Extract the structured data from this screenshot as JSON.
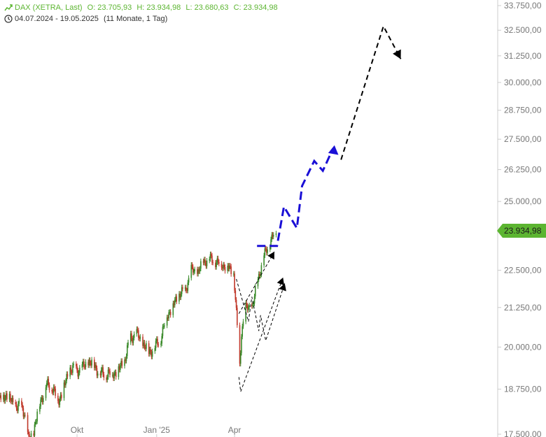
{
  "header": {
    "instrument": "DAX (XETRA, Last)",
    "open": "O: 23.705,93",
    "high": "H: 23.934,98",
    "low": "L: 23.680,63",
    "close": "C: 23.934,98",
    "range": "04.07.2024 - 19.05.2025",
    "period": "(11 Monate, 1 Tag)",
    "icons": [
      "trend-up-icon",
      "clock-icon"
    ]
  },
  "last_price_label": "23.934,98",
  "colors": {
    "header_green": "#5cb531",
    "price_tag": "#5cb531",
    "candle_up": "#3a8a2a",
    "candle_down": "#c0392b",
    "forecast_blue": "#1a0fd6",
    "forecast_black": "#000000",
    "axis": "#cccccc",
    "axis_text": "#777777"
  },
  "chart_data": {
    "type": "line",
    "title": "DAX (XETRA, Last)",
    "y_tick_labels": [
      "17.500,00",
      "18.750,00",
      "20.000,00",
      "21.250,00",
      "22.500,00",
      "25.000,00",
      "26.250,00",
      "27.500,00",
      "28.750,00",
      "30.000,00",
      "31.250,00",
      "32.500,00",
      "33.750,00"
    ],
    "y_ticks": [
      17500,
      18750,
      20000,
      21250,
      22500,
      25000,
      26250,
      27500,
      28750,
      30000,
      31250,
      32500,
      33750
    ],
    "ylim": [
      17500,
      33750
    ],
    "y_scale": "log",
    "x_tick_labels": [
      "Okt",
      "Jan '25",
      "Apr"
    ],
    "x_ticks": [
      "2024-10-01",
      "2025-01-01",
      "2025-04-01"
    ],
    "xlim": [
      "2024-07-04",
      "2026-01-30"
    ],
    "grid": false,
    "series": [
      {
        "kind": "candlestick-trace",
        "points": [
          [
            "2024-07-04",
            18450
          ],
          [
            "2024-07-11",
            18600
          ],
          [
            "2024-07-18",
            18350
          ],
          [
            "2024-07-25",
            18250
          ],
          [
            "2024-08-01",
            18150
          ],
          [
            "2024-08-06",
            17300
          ],
          [
            "2024-08-12",
            17600
          ],
          [
            "2024-08-19",
            18350
          ],
          [
            "2024-08-26",
            18850
          ],
          [
            "2024-09-02",
            18850
          ],
          [
            "2024-09-09",
            18400
          ],
          [
            "2024-09-16",
            18800
          ],
          [
            "2024-09-23",
            19350
          ],
          [
            "2024-09-30",
            19300
          ],
          [
            "2024-10-07",
            19350
          ],
          [
            "2024-10-14",
            19550
          ],
          [
            "2024-10-21",
            19450
          ],
          [
            "2024-10-28",
            19200
          ],
          [
            "2024-11-04",
            19200
          ],
          [
            "2024-11-11",
            19200
          ],
          [
            "2024-11-18",
            19300
          ],
          [
            "2024-11-25",
            19600
          ],
          [
            "2024-12-02",
            20300
          ],
          [
            "2024-12-09",
            20400
          ],
          [
            "2024-12-16",
            20100
          ],
          [
            "2024-12-23",
            19850
          ],
          [
            "2024-12-30",
            20000
          ],
          [
            "2025-01-06",
            20300
          ],
          [
            "2025-01-13",
            21000
          ],
          [
            "2025-01-20",
            21300
          ],
          [
            "2025-01-27",
            21700
          ],
          [
            "2025-02-03",
            21800
          ],
          [
            "2025-02-10",
            22500
          ],
          [
            "2025-02-17",
            22400
          ],
          [
            "2025-02-24",
            22800
          ],
          [
            "2025-03-03",
            22900
          ],
          [
            "2025-03-10",
            22800
          ],
          [
            "2025-03-17",
            22700
          ],
          [
            "2025-03-24",
            22600
          ],
          [
            "2025-03-31",
            22400
          ],
          [
            "2025-04-04",
            20600
          ],
          [
            "2025-04-07",
            19400
          ],
          [
            "2025-04-09",
            20500
          ],
          [
            "2025-04-14",
            21200
          ],
          [
            "2025-04-22",
            21300
          ],
          [
            "2025-04-28",
            22200
          ],
          [
            "2025-05-05",
            23000
          ],
          [
            "2025-05-12",
            23500
          ],
          [
            "2025-05-19",
            23935
          ]
        ]
      },
      {
        "kind": "forecast-blue",
        "points": [
          [
            "2025-04-27",
            23350
          ],
          [
            "2025-05-20",
            23350
          ],
          [
            "2025-05-28",
            24800
          ],
          [
            "2025-06-12",
            24000
          ],
          [
            "2025-06-18",
            25600
          ],
          [
            "2025-07-02",
            26600
          ],
          [
            "2025-07-12",
            26200
          ],
          [
            "2025-07-23",
            27050
          ],
          [
            "2025-07-30",
            26850
          ]
        ]
      },
      {
        "kind": "forecast-black-main",
        "points": [
          [
            "2025-08-02",
            26650
          ],
          [
            "2025-09-20",
            32700
          ],
          [
            "2025-10-10",
            31100
          ]
        ]
      },
      {
        "kind": "forecast-black-paths",
        "points": [
          [
            "2025-04-06",
            19100
          ],
          [
            "2025-04-08",
            18680
          ],
          [
            "2025-05-27",
            22250
          ],
          [
            "2025-04-03",
            22200
          ],
          [
            "2025-04-17",
            20800
          ],
          [
            "2025-04-21",
            21600
          ],
          [
            "2025-04-29",
            20500
          ],
          [
            "2025-05-01",
            21000
          ],
          [
            "2025-05-07",
            20200
          ],
          [
            "2025-05-29",
            22050
          ],
          [
            "2025-04-06",
            21050
          ],
          [
            "2025-05-17",
            23150
          ]
        ]
      }
    ]
  }
}
